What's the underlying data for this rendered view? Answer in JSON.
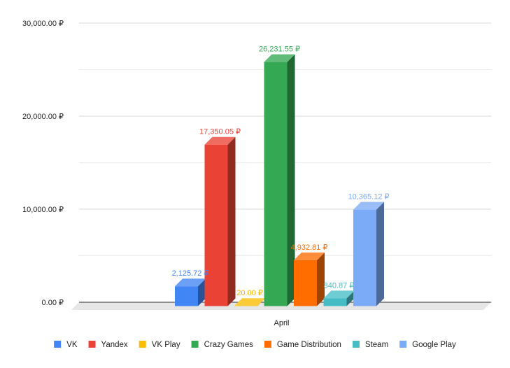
{
  "chart_data": {
    "type": "bar",
    "title": "",
    "xlabel": "",
    "ylabel": "",
    "categories": [
      "April"
    ],
    "ylim": [
      0,
      30000
    ],
    "yticks": [
      0,
      10000,
      20000,
      30000
    ],
    "ytick_labels": [
      "0.00 ₽",
      "10,000.00 ₽",
      "20,000.00 ₽",
      "30,000.00 ₽"
    ],
    "grid": true,
    "style": "3d",
    "legend_position": "bottom",
    "series": [
      {
        "name": "VK",
        "values": [
          2125.72
        ],
        "label": "2,125.72 ₽",
        "color": "#4285f4",
        "label_color": "#4285f4"
      },
      {
        "name": "Yandex",
        "values": [
          17350.05
        ],
        "label": "17,350.05 ₽",
        "color": "#ea4335",
        "label_color": "#ea4335"
      },
      {
        "name": "VK Play",
        "values": [
          20.0
        ],
        "label": "20.00 ₽",
        "color": "#fbbc04",
        "label_color": "#f0b400"
      },
      {
        "name": "Crazy Games",
        "values": [
          26231.55
        ],
        "label": "26,231.55 ₽",
        "color": "#34a853",
        "label_color": "#34a853"
      },
      {
        "name": "Game Distribution",
        "values": [
          4932.81
        ],
        "label": "4,932.81 ₽",
        "color": "#ff6d01",
        "label_color": "#ff6d01"
      },
      {
        "name": "Steam",
        "values": [
          840.87
        ],
        "label": "840.87 ₽",
        "color": "#46bdc6",
        "label_color": "#46bdc6"
      },
      {
        "name": "Google Play",
        "values": [
          10365.12
        ],
        "label": "10,365.12 ₽",
        "color": "#7baaf7",
        "label_color": "#7baaf7"
      }
    ]
  }
}
